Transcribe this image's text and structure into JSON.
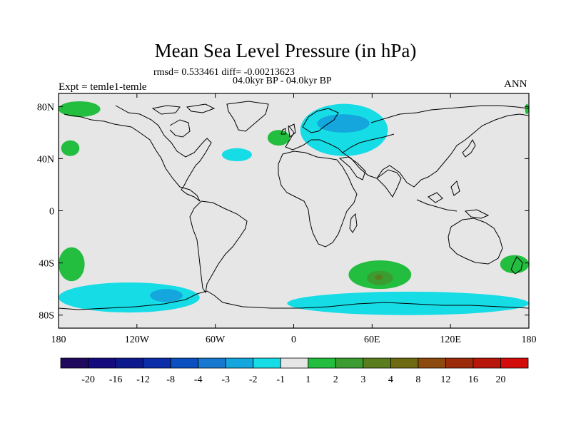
{
  "header": {
    "title": "Mean Sea Level Pressure (in hPa)",
    "stats": "rmsd= 0.533461 diff= -0.00213623",
    "period": "04.0kyr BP - 04.0kyr BP",
    "experiment": "Expt = temle1-temle",
    "season": "ANN"
  },
  "chart_data": {
    "type": "heatmap",
    "title": "Mean Sea Level Pressure (in hPa)",
    "subtitle": "04.0kyr BP - 04.0kyr BP",
    "xlabel": "",
    "ylabel": "",
    "xlim": [
      -180,
      180
    ],
    "ylim": [
      -90,
      90
    ],
    "x_ticks": [
      {
        "value": -180,
        "label": "180"
      },
      {
        "value": -120,
        "label": "120W"
      },
      {
        "value": -60,
        "label": "60W"
      },
      {
        "value": 0,
        "label": "0"
      },
      {
        "value": 60,
        "label": "60E"
      },
      {
        "value": 120,
        "label": "120E"
      },
      {
        "value": 180,
        "label": "180"
      }
    ],
    "y_ticks": [
      {
        "value": 80,
        "label": "80N"
      },
      {
        "value": 40,
        "label": "40N"
      },
      {
        "value": 0,
        "label": "0"
      },
      {
        "value": -40,
        "label": "40S"
      },
      {
        "value": -80,
        "label": "80S"
      }
    ],
    "colorbar": {
      "labels": [
        "-20",
        "-16",
        "-12",
        "-8",
        "-4",
        "-3",
        "-2",
        "-1",
        "1",
        "2",
        "3",
        "4",
        "8",
        "12",
        "16",
        "20"
      ],
      "colors": [
        "#1f0a5e",
        "#140b7c",
        "#0d1a8e",
        "#0b2ea8",
        "#0b4fc0",
        "#1878d0",
        "#14a6dc",
        "#16dce6",
        "#e6e6e6",
        "#23bd3f",
        "#3b9c32",
        "#5a7d1e",
        "#6e6a12",
        "#8c4a0e",
        "#9c2b0b",
        "#b8160b",
        "#d40b0b"
      ]
    },
    "anomaly_regions": [
      {
        "name": "north-pacific-high",
        "class": "1 to 2",
        "color": "#23bd3f",
        "lon": [
          -180,
          -148
        ],
        "lat": [
          72,
          84
        ]
      },
      {
        "name": "north-pacific-mid",
        "class": "1 to 2",
        "color": "#23bd3f",
        "lon": [
          -178,
          -164
        ],
        "lat": [
          42,
          54
        ]
      },
      {
        "name": "north-atlantic-low",
        "class": "-2 to -1",
        "color": "#16dce6",
        "lon": [
          -55,
          -32
        ],
        "lat": [
          38,
          48
        ]
      },
      {
        "name": "northwest-europe-high",
        "class": "1 to 2",
        "color": "#23bd3f",
        "lon": [
          -20,
          -3
        ],
        "lat": [
          50,
          62
        ]
      },
      {
        "name": "scandinavia-russia-low",
        "class": "-2 to -1",
        "color": "#16dce6",
        "lon": [
          5,
          72
        ],
        "lat": [
          42,
          82
        ]
      },
      {
        "name": "scandinavia-russia-core",
        "class": "-3 to -2",
        "color": "#14a6dc",
        "lon": [
          18,
          58
        ],
        "lat": [
          60,
          74
        ]
      },
      {
        "name": "far-east-arctic-high",
        "class": "1 to 2",
        "color": "#23bd3f",
        "lon": [
          177,
          180
        ],
        "lat": [
          74,
          82
        ]
      },
      {
        "name": "south-pacific-high-west",
        "class": "1 to 2",
        "color": "#23bd3f",
        "lon": [
          -180,
          -160
        ],
        "lat": [
          -54,
          -28
        ]
      },
      {
        "name": "southern-indian-high",
        "class": "1 to 2",
        "color": "#23bd3f",
        "lon": [
          42,
          90
        ],
        "lat": [
          -60,
          -38
        ]
      },
      {
        "name": "southern-indian-core",
        "class": "2 to 3",
        "color": "#3b9c32",
        "lon": [
          56,
          76
        ],
        "lat": [
          -57,
          -46
        ]
      },
      {
        "name": "southern-indian-peak",
        "class": "3 to 4",
        "color": "#5a7d1e",
        "lon": [
          62,
          68
        ],
        "lat": [
          -53,
          -49
        ]
      },
      {
        "name": "southwest-pacific-high",
        "class": "1 to 2",
        "color": "#23bd3f",
        "lon": [
          158,
          180
        ],
        "lat": [
          -48,
          -34
        ]
      },
      {
        "name": "southern-ocean-low-pacific",
        "class": "-2 to -1",
        "color": "#16dce6",
        "lon": [
          -180,
          -72
        ],
        "lat": [
          -78,
          -55
        ]
      },
      {
        "name": "southern-ocean-core",
        "class": "-3 to -2",
        "color": "#14a6dc",
        "lon": [
          -110,
          -85
        ],
        "lat": [
          -70,
          -60
        ]
      },
      {
        "name": "antarctic-low-east",
        "class": "-2 to -1",
        "color": "#16dce6",
        "lon": [
          -5,
          180
        ],
        "lat": [
          -80,
          -62
        ]
      }
    ]
  }
}
